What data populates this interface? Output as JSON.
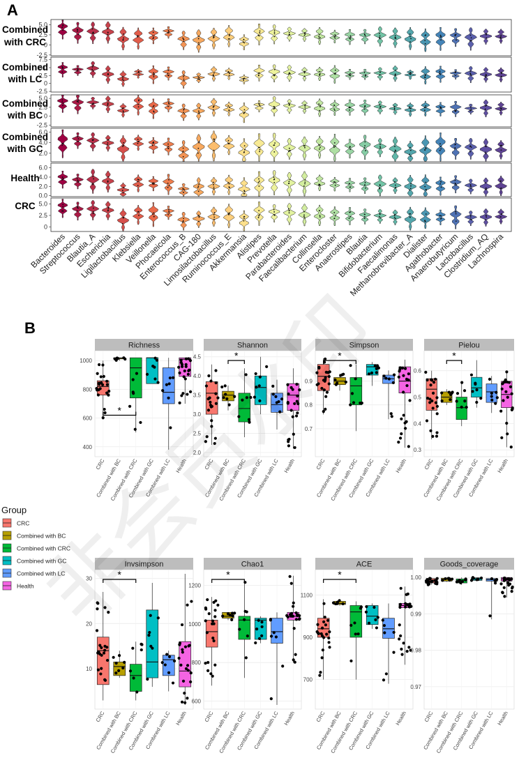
{
  "chart_data": [
    {
      "type": "violin",
      "panel": "A",
      "rows": [
        "Combined with CRC",
        "Combined with LC",
        "Combined with BC",
        "Combined with GC",
        "Health",
        "CRC"
      ],
      "taxa": [
        "Bacteroides",
        "Streptococcus",
        "Blautia_A",
        "Escherichia",
        "Ligilactobacillus",
        "Klebsiella",
        "Veillonella",
        "Phocaeicola",
        "Enterococcus_B",
        "CAG-180",
        "Limosilactobacillus",
        "Ruminococcus_E",
        "Akkermansia",
        "Alistipes",
        "Prevotella",
        "Parabacteroides",
        "Faecalibacterium",
        "Collinsella",
        "Enterocloster",
        "Anaerostipes",
        "Blautia",
        "Bifidobacterium",
        "Faecalimonas",
        "Methanobrevibacter_A",
        "Dialister",
        "Agathobacter",
        "Anaerobutyricum",
        "Lactobacillus",
        "Clostridium_AQ",
        "Lachnospira"
      ],
      "colors": [
        "#9e0142",
        "#ab1a46",
        "#b8304a",
        "#c8424b",
        "#d6504c",
        "#e25d4b",
        "#ea6a4a",
        "#f07e4d",
        "#f49455",
        "#f8a95f",
        "#fbbd6d",
        "#fdcf7d",
        "#fde08b",
        "#f8ea94",
        "#eef39d",
        "#e3f3a0",
        "#d3eea0",
        "#c2e7a1",
        "#aedfa3",
        "#99d5a4",
        "#86cda5",
        "#72c4a6",
        "#61b7a9",
        "#54a7ad",
        "#4a96b2",
        "#4484b8",
        "#4f72b4",
        "#5b60ad",
        "#5f4fa1",
        "#5e4293"
      ],
      "row_ticks": [
        [
          "5.0",
          "2.5",
          "0",
          "-2.5"
        ],
        [
          "7.5",
          "5.0",
          "2.5",
          "0",
          "-2.5"
        ],
        [
          "5.0",
          "2.5",
          "0",
          "-2.5"
        ],
        [
          "6.0",
          "4.0",
          "2.0"
        ],
        [
          "6.0",
          "4.0",
          "2.0",
          "0.0"
        ],
        [
          "5.0",
          "2.5",
          "0"
        ]
      ],
      "row_ranges": [
        [
          -2.7,
          6.3
        ],
        [
          -2.7,
          8.3
        ],
        [
          -3.0,
          6.0
        ],
        [
          0.4,
          6.7
        ],
        [
          -0.2,
          7.0
        ],
        [
          -1.0,
          6.3
        ]
      ],
      "row_medians": [
        [
          4.0,
          3.2,
          3.2,
          3.3,
          1.8,
          1.8,
          2.4,
          3.2,
          1.3,
          1.2,
          1.8,
          2.4,
          0.8,
          2.8,
          2.8,
          2.8,
          2.6,
          2.4,
          2.2,
          2.1,
          2.2,
          2.3,
          2.0,
          1.8,
          1.4,
          1.7,
          2.0,
          1.7,
          2.2,
          2.3
        ],
        [
          4.5,
          4.2,
          4.6,
          3.0,
          1.7,
          3.2,
          3.0,
          3.3,
          1.5,
          1.9,
          3.2,
          3.2,
          1.4,
          3.5,
          3.4,
          3.4,
          3.1,
          3.2,
          3.1,
          3.0,
          3.0,
          3.2,
          3.3,
          2.9,
          2.8,
          3.1,
          3.0,
          3.0,
          2.9,
          2.9
        ],
        [
          3.8,
          3.6,
          3.8,
          3.5,
          1.8,
          3.4,
          2.3,
          3.2,
          1.3,
          1.5,
          2.7,
          2.2,
          1.2,
          2.9,
          3.0,
          2.9,
          2.7,
          2.6,
          2.5,
          2.6,
          2.6,
          2.6,
          2.2,
          2.0,
          2.3,
          2.1,
          2.2,
          2.1,
          2.4,
          2.3
        ],
        [
          4.0,
          4.5,
          4.3,
          4.0,
          3.0,
          4.1,
          3.6,
          3.4,
          2.2,
          3.1,
          3.6,
          3.7,
          2.5,
          3.3,
          3.2,
          3.0,
          3.1,
          3.3,
          3.2,
          3.0,
          3.3,
          3.2,
          2.7,
          2.3,
          2.8,
          3.4,
          3.0,
          3.0,
          2.7,
          2.8
        ],
        [
          3.6,
          3.2,
          3.3,
          3.2,
          1.2,
          2.8,
          2.7,
          2.6,
          1.2,
          1.5,
          2.2,
          2.5,
          1.5,
          2.6,
          3.0,
          2.7,
          2.8,
          2.9,
          2.6,
          2.4,
          2.3,
          2.4,
          2.3,
          2.0,
          2.1,
          2.2,
          2.6,
          2.1,
          2.0,
          2.3
        ],
        [
          4.2,
          3.6,
          3.8,
          3.7,
          1.7,
          2.8,
          2.9,
          3.2,
          1.4,
          1.8,
          2.4,
          2.6,
          1.5,
          3.1,
          3.1,
          3.0,
          2.8,
          2.7,
          2.5,
          2.5,
          2.4,
          2.4,
          2.2,
          2.0,
          2.1,
          2.2,
          2.3,
          2.0,
          2.2,
          2.4
        ]
      ]
    },
    {
      "type": "box",
      "panel": "B",
      "groups": [
        "CRC",
        "Combined with BC",
        "Combined with CRC",
        "Combined with GC",
        "Combined with LC",
        "Health"
      ],
      "group_colors": [
        "#f8766d",
        "#b79f00",
        "#00ba38",
        "#00bfc4",
        "#619cff",
        "#f564e3"
      ],
      "legend_title": "Group",
      "significance_mark": "*",
      "panels": [
        {
          "title": "Richness",
          "ylim": [
            360,
            1040
          ],
          "ticks": [
            "400",
            "600",
            "800",
            "1000"
          ],
          "tick_values": [
            400,
            600,
            800,
            1000
          ],
          "boxes": [
            [
              590,
              760,
              820,
              860,
              1000
            ],
            [
              1000,
              1012,
              1018,
              1020,
              1020
            ],
            [
              500,
              740,
              950,
              1020,
              1020
            ],
            [
              870,
              840,
              1020,
              1020,
              1020
            ],
            [
              380,
              700,
              780,
              950,
              1020
            ],
            [
              700,
              890,
              1010,
              1020,
              1020
            ]
          ],
          "sig": [
            0,
            2
          ]
        },
        {
          "title": "Shannon",
          "ylim": [
            2.0,
            4.55
          ],
          "ticks": [
            "2.0",
            "2.5",
            "3.0",
            "3.5",
            "4.0",
            "4.5"
          ],
          "tick_values": [
            2.0,
            2.5,
            3.0,
            3.5,
            4.0,
            4.5
          ],
          "boxes": [
            [
              2.2,
              3.0,
              3.55,
              3.85,
              4.3
            ],
            [
              3.1,
              3.35,
              3.5,
              3.6,
              3.75
            ],
            [
              2.4,
              2.8,
              3.15,
              3.55,
              4.2
            ],
            [
              3.0,
              3.25,
              3.7,
              4.0,
              4.5
            ],
            [
              2.6,
              3.05,
              3.25,
              3.55,
              3.9
            ],
            [
              2.1,
              3.1,
              3.5,
              3.8,
              4.2
            ]
          ],
          "sig": [
            1,
            2
          ]
        },
        {
          "title": "Simpson",
          "ylim": [
            0.6,
            1.01
          ],
          "ticks": [
            "0.7",
            "0.8",
            "0.9"
          ],
          "tick_values": [
            0.7,
            0.8,
            0.9
          ],
          "boxes": [
            [
              0.76,
              0.86,
              0.92,
              0.97,
              0.995
            ],
            [
              0.86,
              0.885,
              0.9,
              0.915,
              0.93
            ],
            [
              0.69,
              0.8,
              0.88,
              0.915,
              0.97
            ],
            [
              0.88,
              0.925,
              0.96,
              0.97,
              0.98
            ],
            [
              0.74,
              0.89,
              0.91,
              0.925,
              0.945
            ],
            [
              0.62,
              0.85,
              0.9,
              0.96,
              0.99
            ]
          ],
          "sig": [
            0,
            2
          ]
        },
        {
          "title": "Pielou",
          "ylim": [
            0.29,
            0.66
          ],
          "ticks": [
            "0.3",
            "0.4",
            "0.5",
            "0.6"
          ],
          "tick_values": [
            0.3,
            0.4,
            0.5,
            0.6
          ],
          "boxes": [
            [
              0.34,
              0.45,
              0.53,
              0.57,
              0.6
            ],
            [
              0.47,
              0.48,
              0.5,
              0.52,
              0.53
            ],
            [
              0.39,
              0.415,
              0.46,
              0.5,
              0.56
            ],
            [
              0.46,
              0.5,
              0.535,
              0.575,
              0.64
            ],
            [
              0.44,
              0.48,
              0.52,
              0.55,
              0.58
            ],
            [
              0.31,
              0.46,
              0.51,
              0.56,
              0.6
            ]
          ],
          "sig": [
            1,
            2
          ]
        },
        {
          "title": "Invsimpson",
          "ylim": [
            2,
            31
          ],
          "ticks": [
            "10",
            "20",
            "30"
          ],
          "tick_values": [
            10,
            20,
            30
          ],
          "boxes": [
            [
              3,
              6.5,
              14,
              17,
              27
            ],
            [
              8,
              8.5,
              10.5,
              11.5,
              14
            ],
            [
              3,
              5,
              8.5,
              11,
              16
            ],
            [
              6,
              8,
              11.5,
              23,
              29
            ],
            [
              5,
              8.5,
              12,
              13,
              14
            ],
            [
              2,
              6,
              9.5,
              16,
              31
            ]
          ],
          "sig": [
            0,
            2
          ]
        },
        {
          "title": "Chao1",
          "ylim": [
            580,
            1260
          ],
          "ticks": [
            "600",
            "800",
            "1000",
            "1200"
          ],
          "tick_values": [
            600,
            800,
            1000,
            1200
          ],
          "boxes": [
            [
              680,
              880,
              960,
              1020,
              1140
            ],
            [
              1020,
              1030,
              1040,
              1060,
              1060
            ],
            [
              720,
              920,
              1020,
              1040,
              1230
            ],
            [
              900,
              920,
              1020,
              1030,
              1040
            ],
            [
              580,
              900,
              960,
              1030,
              1060
            ],
            [
              800,
              1020,
              1040,
              1060,
              1250
            ]
          ],
          "sig": [
            0,
            2
          ]
        },
        {
          "title": "ACE",
          "ylim": [
            580,
            1200
          ],
          "ticks": [
            "700",
            "900",
            "1100"
          ],
          "tick_values": [
            700,
            900,
            1100
          ],
          "boxes": [
            [
              700,
              900,
              940,
              990,
              1080
            ],
            [
              1050,
              1055,
              1060,
              1070,
              1075
            ],
            [
              700,
              900,
              1020,
              1050,
              1070
            ],
            [
              940,
              960,
              1000,
              1050,
              1060
            ],
            [
              680,
              895,
              940,
              990,
              1060
            ],
            [
              770,
              1040,
              1050,
              1060,
              1140
            ]
          ],
          "sig": [
            0,
            2
          ]
        },
        {
          "title": "Goods_coverage",
          "ylim": [
            0.965,
            1.001
          ],
          "ticks": [
            "0.97",
            "0.98",
            "0.99",
            "1.00"
          ],
          "tick_values": [
            0.97,
            0.98,
            0.99,
            1.0
          ],
          "boxes": [
            [
              0.998,
              0.9985,
              0.9993,
              0.9997,
              1.0
            ],
            [
              0.9988,
              0.999,
              0.9995,
              0.9998,
              1.0
            ],
            [
              0.998,
              0.9985,
              0.9992,
              0.9996,
              1.0
            ],
            [
              0.999,
              0.9992,
              0.9996,
              0.9999,
              1.0
            ],
            [
              0.9885,
              0.999,
              0.9994,
              0.9997,
              1.0
            ],
            [
              0.9945,
              0.999,
              0.9996,
              1.0,
              1.0
            ]
          ],
          "sig": null
        }
      ]
    }
  ],
  "watermark": "非会员水印"
}
